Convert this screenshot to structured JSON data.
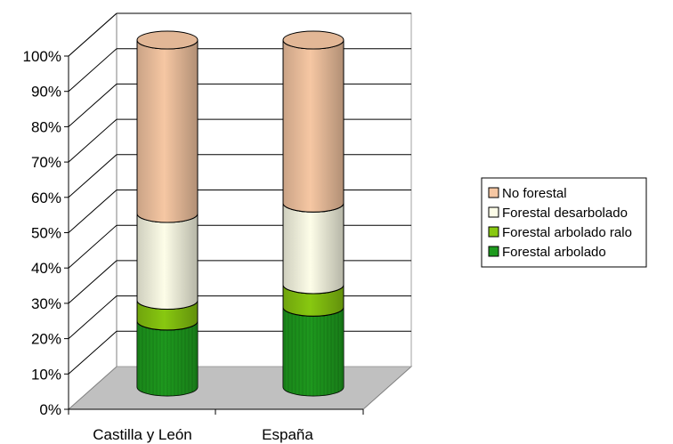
{
  "chart_data": {
    "type": "bar",
    "stacked": true,
    "percent": true,
    "three_d": true,
    "categories": [
      "Castilla y León",
      "España"
    ],
    "series": [
      {
        "name": "Forestal arbolado",
        "values": [
          19,
          23
        ],
        "color": "#1e9b1e"
      },
      {
        "name": "Forestal arbolado ralo",
        "values": [
          6,
          6.5
        ],
        "color": "#88c810"
      },
      {
        "name": "Forestal desarbolado",
        "values": [
          25,
          23.5
        ],
        "color": "#fdfde8"
      },
      {
        "name": "No forestal",
        "values": [
          50,
          47
        ],
        "color": "#f6c7a3"
      }
    ],
    "y_ticks": [
      "0%",
      "10%",
      "20%",
      "30%",
      "40%",
      "50%",
      "60%",
      "70%",
      "80%",
      "90%",
      "100%"
    ],
    "ylim": [
      0,
      100
    ],
    "grid": true,
    "legend_position": "right",
    "legend_order": [
      "No forestal",
      "Forestal desarbolado",
      "Forestal arbolado ralo",
      "Forestal arbolado"
    ],
    "title": "",
    "xlabel": "",
    "ylabel": ""
  }
}
